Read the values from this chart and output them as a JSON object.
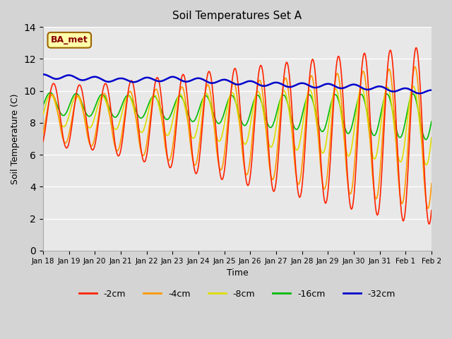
{
  "title": "Soil Temperatures Set A",
  "xlabel": "Time",
  "ylabel": "Soil Temperature (C)",
  "ylim": [
    0,
    14
  ],
  "fig_bg_color": "#d4d4d4",
  "axes_bg_color": "#e8e8e8",
  "annotation_text": "BA_met",
  "annotation_bg": "#ffffaa",
  "annotation_border": "#996600",
  "annotation_text_color": "#880000",
  "colors": {
    "d2": "#ff2200",
    "d4": "#ff9900",
    "d8": "#dddd00",
    "d16": "#00bb00",
    "d32": "#0000cc"
  },
  "legend_labels": [
    "-2cm",
    "-4cm",
    "-8cm",
    "-16cm",
    "-32cm"
  ],
  "x_labels": [
    "Jan 18",
    "Jan 19",
    "Jan 20",
    "Jan 21",
    "Jan 22",
    "Jan 23",
    "Jan 24",
    "Jan 25",
    "Jan 26",
    "Jan 27",
    "Jan 28",
    "Jan 29",
    "Jan 30",
    "Jan 31",
    "Feb 1",
    "Feb 2"
  ],
  "days": 15,
  "pts_per_day": 48
}
